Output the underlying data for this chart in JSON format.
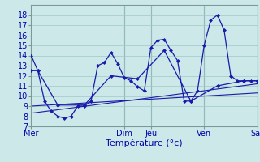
{
  "background_color": "#cce8e8",
  "grid_color": "#9ec8c8",
  "line_color": "#1a1aaa",
  "marker_color": "#1a1aaa",
  "xlabel": "Température (°c)",
  "xlabel_fontsize": 8,
  "tick_label_fontsize": 7,
  "day_labels": [
    "Mer",
    "Dim",
    "Jeu",
    "Ven",
    "Sar"
  ],
  "day_positions": [
    0,
    14,
    18,
    26,
    34
  ],
  "xlim": [
    0,
    34
  ],
  "ylim": [
    7,
    19
  ],
  "yticks": [
    7,
    8,
    9,
    10,
    11,
    12,
    13,
    14,
    15,
    16,
    17,
    18
  ],
  "series1_x": [
    0,
    1,
    2,
    3,
    4,
    5,
    6,
    7,
    8,
    9,
    10,
    11,
    12,
    13,
    14,
    15,
    16,
    17,
    18,
    19,
    20,
    21,
    22,
    23,
    24,
    25,
    26,
    27,
    28,
    29,
    30,
    31,
    32,
    33,
    34
  ],
  "series1_y": [
    14,
    12.5,
    9.5,
    8.5,
    8,
    7.8,
    8,
    9,
    9,
    9.5,
    13,
    13.3,
    14.3,
    13.2,
    11.8,
    11.5,
    10.9,
    10.5,
    14.8,
    15.5,
    15.6,
    14.5,
    13.5,
    9.5,
    9.5,
    10.5,
    15,
    17.5,
    18,
    16.5,
    12,
    11.5,
    11.5,
    11.5,
    11.5
  ],
  "series2_x": [
    0,
    1,
    4,
    8,
    12,
    16,
    20,
    24,
    28,
    32,
    34
  ],
  "series2_y": [
    12.5,
    12.5,
    9.1,
    9.1,
    12,
    11.7,
    14.5,
    9.5,
    11,
    11.5,
    11.5
  ],
  "trend1_x": [
    0,
    34
  ],
  "trend1_y": [
    9.0,
    10.3
  ],
  "trend2_x": [
    0,
    34
  ],
  "trend2_y": [
    8.3,
    11.2
  ]
}
